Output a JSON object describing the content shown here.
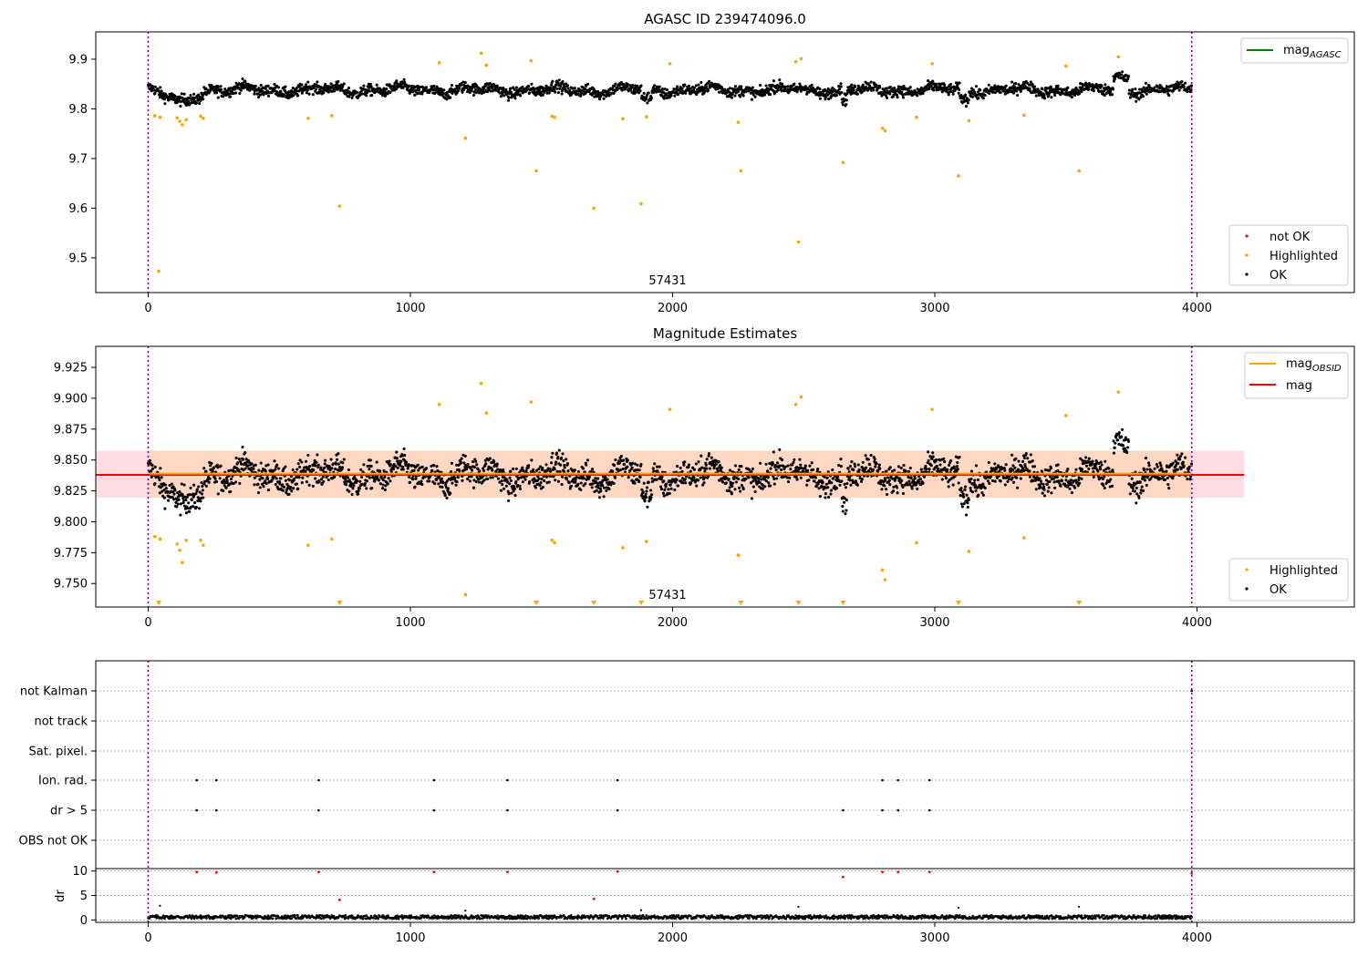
{
  "colors": {
    "ok": "#000000",
    "highlighted": "#ffa500",
    "not_ok": "#ff0000",
    "mag_agasc": "#008000",
    "mag_obsid": "#ffa500",
    "mag": "#ff0000",
    "band_outer": "#ffdde3",
    "band_inner": "#ffd8c4",
    "obs_boundary": "#800080"
  },
  "chart_data": [
    {
      "type": "scatter",
      "title": "AGASC ID 239474096.0",
      "xlim": [
        -200,
        4600
      ],
      "ylim": [
        9.43,
        9.955
      ],
      "x_ticks": [
        0,
        1000,
        2000,
        3000,
        4000
      ],
      "y_ticks": [
        9.5,
        9.6,
        9.7,
        9.8,
        9.9
      ],
      "obs_boundaries": [
        0,
        3980
      ],
      "obs_label": "57431",
      "ok_band": {
        "x_start": 0,
        "x_end": 3980,
        "mean": 9.838,
        "sigma": 0.018
      },
      "highlighted_points": [
        [
          40,
          9.473
        ],
        [
          25,
          9.786
        ],
        [
          45,
          9.783
        ],
        [
          110,
          9.782
        ],
        [
          120,
          9.775
        ],
        [
          130,
          9.768
        ],
        [
          145,
          9.778
        ],
        [
          200,
          9.785
        ],
        [
          210,
          9.781
        ],
        [
          610,
          9.781
        ],
        [
          700,
          9.786
        ],
        [
          730,
          9.604
        ],
        [
          1110,
          9.893
        ],
        [
          1210,
          9.741
        ],
        [
          1270,
          9.912
        ],
        [
          1290,
          9.888
        ],
        [
          1460,
          9.897
        ],
        [
          1480,
          9.675
        ],
        [
          1540,
          9.785
        ],
        [
          1550,
          9.783
        ],
        [
          1700,
          9.6
        ],
        [
          1810,
          9.78
        ],
        [
          1880,
          9.609
        ],
        [
          1900,
          9.784
        ],
        [
          1990,
          9.891
        ],
        [
          2250,
          9.773
        ],
        [
          2260,
          9.675
        ],
        [
          2470,
          9.895
        ],
        [
          2480,
          9.532
        ],
        [
          2490,
          9.901
        ],
        [
          2650,
          9.692
        ],
        [
          2800,
          9.761
        ],
        [
          2810,
          9.756
        ],
        [
          2930,
          9.783
        ],
        [
          2990,
          9.891
        ],
        [
          3090,
          9.665
        ],
        [
          3130,
          9.776
        ],
        [
          3340,
          9.787
        ],
        [
          3500,
          9.886
        ],
        [
          3550,
          9.675
        ],
        [
          3700,
          9.905
        ]
      ],
      "not_ok_points": [],
      "legend_lines": [
        {
          "label_base": "mag",
          "label_sub": "AGASC"
        }
      ],
      "legend_points": [
        "not OK",
        "Highlighted",
        "OK"
      ]
    },
    {
      "type": "scatter",
      "title": "Magnitude Estimates",
      "xlim": [
        -200,
        4600
      ],
      "ylim": [
        9.731,
        9.942
      ],
      "x_ticks": [
        0,
        1000,
        2000,
        3000,
        4000
      ],
      "y_ticks": [
        9.75,
        9.775,
        9.8,
        9.825,
        9.85,
        9.875,
        9.9,
        9.925
      ],
      "y_tick_labels": [
        "9.750",
        "9.775",
        "9.800",
        "9.825",
        "9.850",
        "9.875",
        "9.900",
        "9.925"
      ],
      "obs_boundaries": [
        0,
        3980
      ],
      "obs_label": "57431",
      "mag_line": {
        "value": 9.838,
        "x_start": -200,
        "x_end": 4180
      },
      "mag_band": {
        "low": 9.8195,
        "high": 9.8575,
        "x_start": -200,
        "x_end": 4180
      },
      "mag_obsid_line": {
        "value": 9.839,
        "x_start": 0,
        "x_end": 3980
      },
      "mag_obsid_band": {
        "low": 9.8195,
        "high": 9.8575,
        "x_start": 0,
        "x_end": 3980
      },
      "highlighted_points": [
        [
          25,
          9.788
        ],
        [
          45,
          9.786
        ],
        [
          110,
          9.782
        ],
        [
          120,
          9.777
        ],
        [
          130,
          9.767
        ],
        [
          145,
          9.785
        ],
        [
          200,
          9.785
        ],
        [
          210,
          9.781
        ],
        [
          610,
          9.781
        ],
        [
          700,
          9.786
        ],
        [
          1110,
          9.895
        ],
        [
          1210,
          9.741
        ],
        [
          1270,
          9.912
        ],
        [
          1290,
          9.888
        ],
        [
          1460,
          9.897
        ],
        [
          1540,
          9.785
        ],
        [
          1550,
          9.783
        ],
        [
          1810,
          9.779
        ],
        [
          1900,
          9.784
        ],
        [
          1990,
          9.891
        ],
        [
          2250,
          9.773
        ],
        [
          2470,
          9.895
        ],
        [
          2490,
          9.901
        ],
        [
          2800,
          9.761
        ],
        [
          2810,
          9.753
        ],
        [
          2930,
          9.783
        ],
        [
          2990,
          9.891
        ],
        [
          3130,
          9.776
        ],
        [
          3340,
          9.787
        ],
        [
          3500,
          9.886
        ],
        [
          3700,
          9.905
        ]
      ],
      "out_of_range_markers": [
        40,
        730,
        1480,
        1700,
        1880,
        2260,
        2480,
        2650,
        3090,
        3550
      ],
      "legend_lines": [
        {
          "label_base": "mag",
          "label_sub": "OBSID"
        },
        {
          "label_base": "mag",
          "label_sub": ""
        }
      ],
      "legend_points": [
        "Highlighted",
        "OK"
      ]
    },
    {
      "type": "scatter",
      "title": "",
      "xlim": [
        -200,
        4600
      ],
      "x_ticks": [
        0,
        1000,
        2000,
        3000,
        4000
      ],
      "obs_boundaries": [
        0,
        3980
      ],
      "flag_categories": [
        "not Kalman",
        "not track",
        "Sat. pixel.",
        "Ion. rad.",
        "dr > 5",
        "OBS not OK"
      ],
      "flag_points": {
        "not Kalman": [
          3980
        ],
        "not track": [],
        "Sat. pixel.": [],
        "Ion. rad.": [
          185,
          260,
          650,
          1090,
          1370,
          1790,
          2800,
          2860,
          2980
        ],
        "dr > 5": [
          185,
          260,
          650,
          1090,
          1370,
          1790,
          2650,
          2800,
          2860,
          2980
        ],
        "OBS not OK": []
      },
      "dr_ylabel": "dr",
      "dr_ylim": [
        -0.5,
        10.5
      ],
      "dr_y_ticks": [
        0,
        5,
        10
      ],
      "dr_red_points": [
        [
          185,
          9.8
        ],
        [
          260,
          9.7
        ],
        [
          650,
          9.8
        ],
        [
          1090,
          9.8
        ],
        [
          1370,
          9.8
        ],
        [
          1790,
          9.9
        ],
        [
          2650,
          8.8
        ],
        [
          2800,
          9.8
        ],
        [
          2860,
          9.8
        ],
        [
          2980,
          9.8
        ],
        [
          3980,
          9.5
        ],
        [
          730,
          4.1
        ],
        [
          1700,
          4.3
        ]
      ],
      "dr_spikes": [
        [
          45,
          2.9
        ],
        [
          1210,
          1.9
        ],
        [
          1880,
          2.0
        ],
        [
          2480,
          2.7
        ],
        [
          3090,
          2.5
        ],
        [
          3550,
          2.7
        ]
      ]
    }
  ]
}
